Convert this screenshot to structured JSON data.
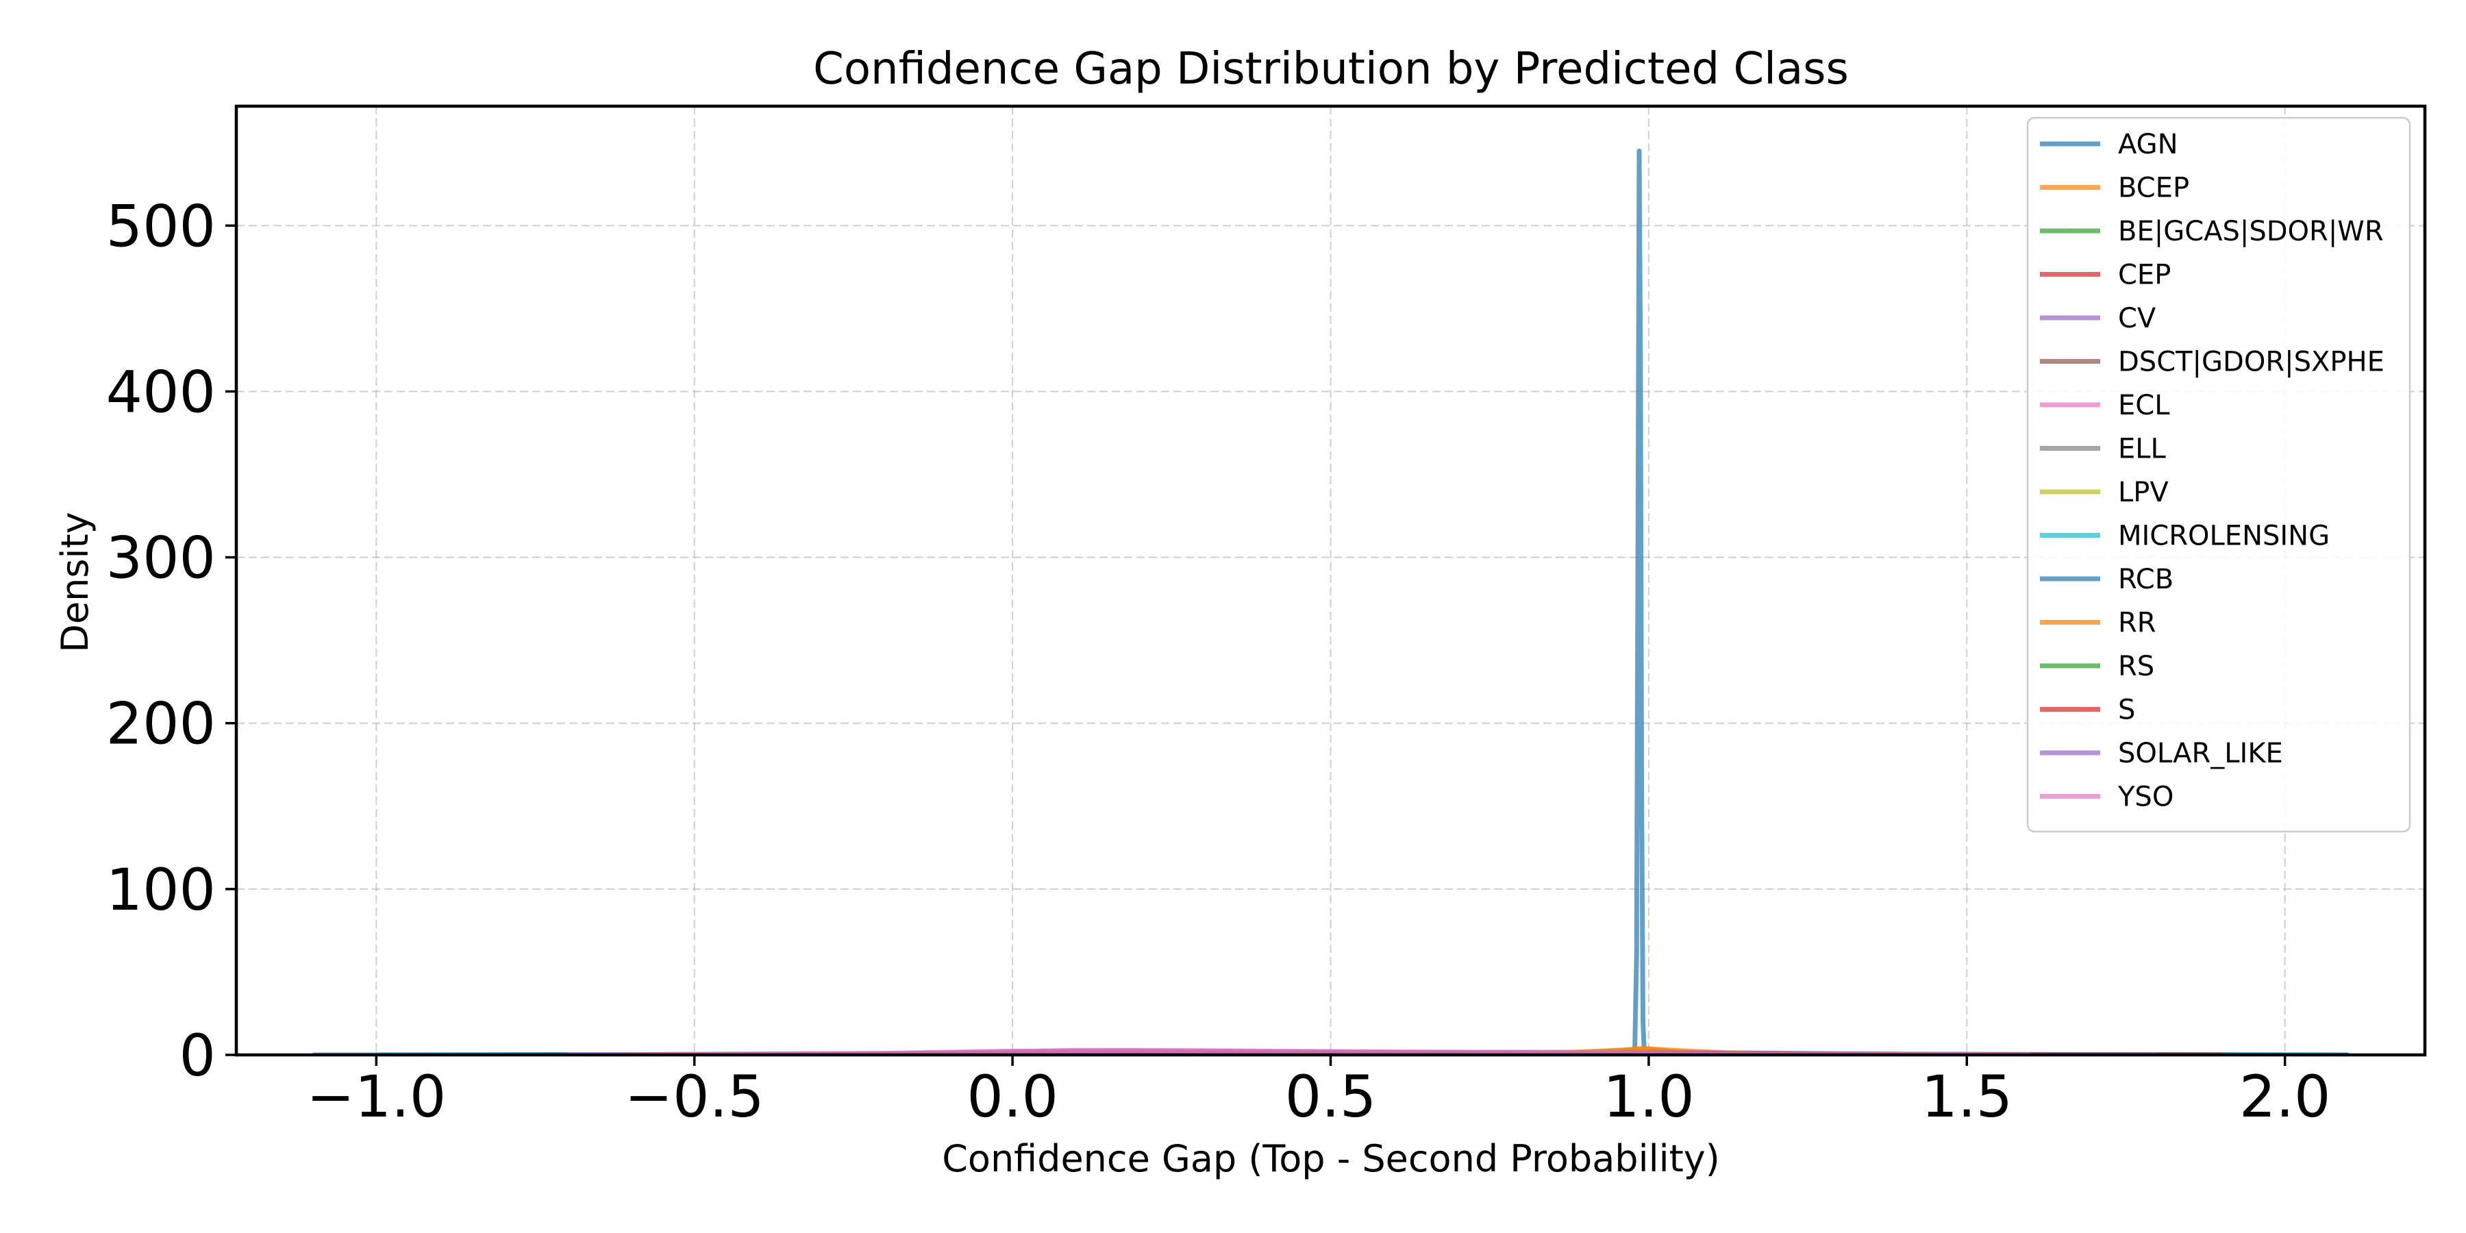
{
  "chart_data": {
    "type": "line",
    "title": "Confidence Gap Distribution by Predicted Class",
    "xlabel": "Confidence Gap (Top - Second Probability)",
    "ylabel": "Density",
    "xlim": [
      -1.22,
      2.22
    ],
    "ylim": [
      0,
      572
    ],
    "xticks": [
      {
        "value": -1.0,
        "label": "−1.0"
      },
      {
        "value": -0.5,
        "label": "−0.5"
      },
      {
        "value": 0.0,
        "label": "0.0"
      },
      {
        "value": 0.5,
        "label": "0.5"
      },
      {
        "value": 1.0,
        "label": "1.0"
      },
      {
        "value": 1.5,
        "label": "1.5"
      },
      {
        "value": 2.0,
        "label": "2.0"
      }
    ],
    "yticks": [
      {
        "value": 0,
        "label": "0"
      },
      {
        "value": 100,
        "label": "100"
      },
      {
        "value": 200,
        "label": "200"
      },
      {
        "value": 300,
        "label": "300"
      },
      {
        "value": 400,
        "label": "400"
      },
      {
        "value": 500,
        "label": "500"
      }
    ],
    "grid": true,
    "legend_position": "top-right",
    "series": [
      {
        "name": "AGN",
        "color": "#1f77b4",
        "x": [
          0.975,
          0.978,
          0.981,
          0.983,
          0.985,
          0.987,
          0.989,
          0.991,
          0.993,
          0.996
        ],
        "y": [
          0,
          2,
          60,
          300,
          545,
          420,
          150,
          20,
          2,
          0
        ]
      },
      {
        "name": "BCEP",
        "color": "#ff7f0e",
        "x": [
          0.8,
          0.9,
          0.95,
          0.99,
          1.03,
          1.08,
          1.15
        ],
        "y": [
          0.2,
          1.0,
          2.5,
          4.0,
          2.5,
          0.8,
          0
        ]
      },
      {
        "name": "BE|GCAS|SDOR|WR",
        "color": "#2ca02c",
        "x": [
          -0.3,
          0.0,
          0.3,
          0.6,
          0.9,
          1.0,
          1.2,
          1.5
        ],
        "y": [
          0,
          0.6,
          1.2,
          1.4,
          1.4,
          1.3,
          0.6,
          0
        ]
      },
      {
        "name": "CEP",
        "color": "#d62728",
        "x": [
          0.5,
          0.8,
          0.95,
          1.0,
          1.05,
          1.2,
          1.5
        ],
        "y": [
          0,
          0.8,
          1.8,
          2.2,
          1.5,
          0.5,
          0
        ]
      },
      {
        "name": "CV",
        "color": "#9467bd",
        "x": [
          -0.6,
          -0.2,
          0.0,
          0.15,
          0.4,
          0.8,
          1.0,
          1.3,
          1.8
        ],
        "y": [
          0,
          0.8,
          2.0,
          2.4,
          1.8,
          1.0,
          0.8,
          0.2,
          0
        ]
      },
      {
        "name": "DSCT|GDOR|SXPHE",
        "color": "#8c564b",
        "x": [
          -0.8,
          -0.3,
          0.0,
          0.3,
          0.7,
          1.0,
          1.4,
          2.0
        ],
        "y": [
          0,
          0.5,
          1.2,
          1.5,
          1.3,
          1.6,
          0.4,
          0
        ]
      },
      {
        "name": "ECL",
        "color": "#e377c2",
        "x": [
          -0.5,
          -0.1,
          0.1,
          0.3,
          0.6,
          0.9,
          1.1,
          1.5
        ],
        "y": [
          0,
          1.0,
          2.8,
          2.6,
          1.8,
          1.5,
          0.5,
          0
        ]
      },
      {
        "name": "ELL",
        "color": "#7f7f7f",
        "x": [
          -0.4,
          0.0,
          0.4,
          0.8,
          1.0,
          1.3,
          1.8
        ],
        "y": [
          0,
          0.7,
          1.3,
          1.5,
          1.6,
          0.6,
          0
        ]
      },
      {
        "name": "LPV",
        "color": "#bcbd22",
        "x": [
          0.3,
          0.7,
          0.9,
          0.98,
          1.05,
          1.2,
          1.6
        ],
        "y": [
          0,
          0.6,
          1.8,
          3.0,
          2.0,
          0.5,
          0
        ]
      },
      {
        "name": "MICROLENSING",
        "color": "#17becf",
        "x": [
          -1.0,
          -0.3,
          0.3,
          0.9,
          1.5,
          2.1
        ],
        "y": [
          0,
          0.3,
          0.6,
          0.7,
          0.3,
          0
        ]
      },
      {
        "name": "RCB",
        "color": "#1f77b4",
        "x": [
          -1.1,
          -0.5,
          0.0,
          0.5,
          1.0,
          1.5,
          2.1
        ],
        "y": [
          0,
          0.2,
          0.5,
          0.7,
          0.6,
          0.2,
          0
        ]
      },
      {
        "name": "RR",
        "color": "#ff7f0e",
        "x": [
          0.6,
          0.85,
          0.95,
          1.0,
          1.05,
          1.15,
          1.4
        ],
        "y": [
          0,
          1.0,
          2.8,
          3.6,
          2.6,
          0.8,
          0
        ]
      },
      {
        "name": "RS",
        "color": "#2ca02c",
        "x": [
          -0.2,
          0.1,
          0.4,
          0.7,
          1.0,
          1.3,
          1.7
        ],
        "y": [
          0,
          0.8,
          1.2,
          1.1,
          1.0,
          0.4,
          0
        ]
      },
      {
        "name": "S",
        "color": "#d62728",
        "x": [
          -0.6,
          -0.2,
          0.1,
          0.4,
          0.8,
          1.0,
          1.4,
          1.9
        ],
        "y": [
          0,
          0.6,
          1.6,
          1.4,
          1.0,
          1.1,
          0.3,
          0
        ]
      },
      {
        "name": "SOLAR_LIKE",
        "color": "#9467bd",
        "x": [
          -0.5,
          -0.1,
          0.1,
          0.3,
          0.7,
          1.0,
          1.3,
          1.8
        ],
        "y": [
          0,
          1.0,
          2.2,
          2.0,
          1.4,
          1.2,
          0.4,
          0
        ]
      },
      {
        "name": "YSO",
        "color": "#e377c2",
        "x": [
          -0.7,
          -0.2,
          0.0,
          0.2,
          0.5,
          0.9,
          1.1,
          1.6
        ],
        "y": [
          0,
          1.0,
          2.3,
          2.5,
          1.7,
          1.3,
          0.5,
          0
        ]
      }
    ]
  }
}
